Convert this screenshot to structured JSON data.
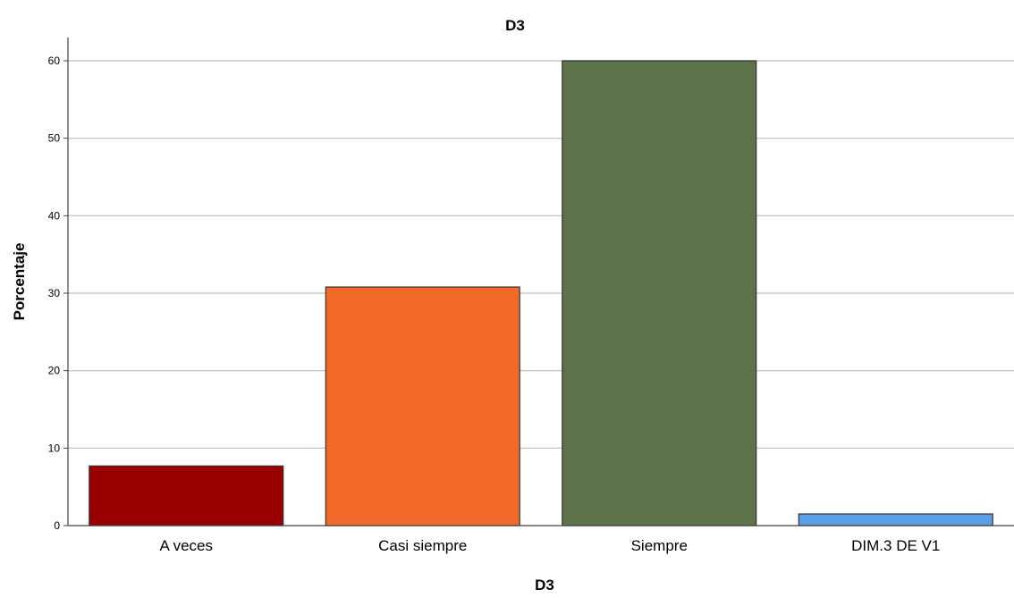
{
  "chart_data": {
    "type": "bar",
    "title": "D3",
    "xlabel": "D3",
    "ylabel": "Porcentaje",
    "categories": [
      "A veces",
      "Casi siempre",
      "Siempre",
      "DIM.3 DE V1"
    ],
    "values": [
      7.7,
      30.8,
      60.0,
      1.5
    ],
    "ylim": [
      0,
      63
    ],
    "yticks": [
      0,
      10,
      20,
      30,
      40,
      50,
      60
    ],
    "grid": true,
    "colors": [
      "#990000",
      "#f26a2a",
      "#5d714a",
      "#5b9ee8"
    ],
    "bar_border_color": "#333333"
  }
}
